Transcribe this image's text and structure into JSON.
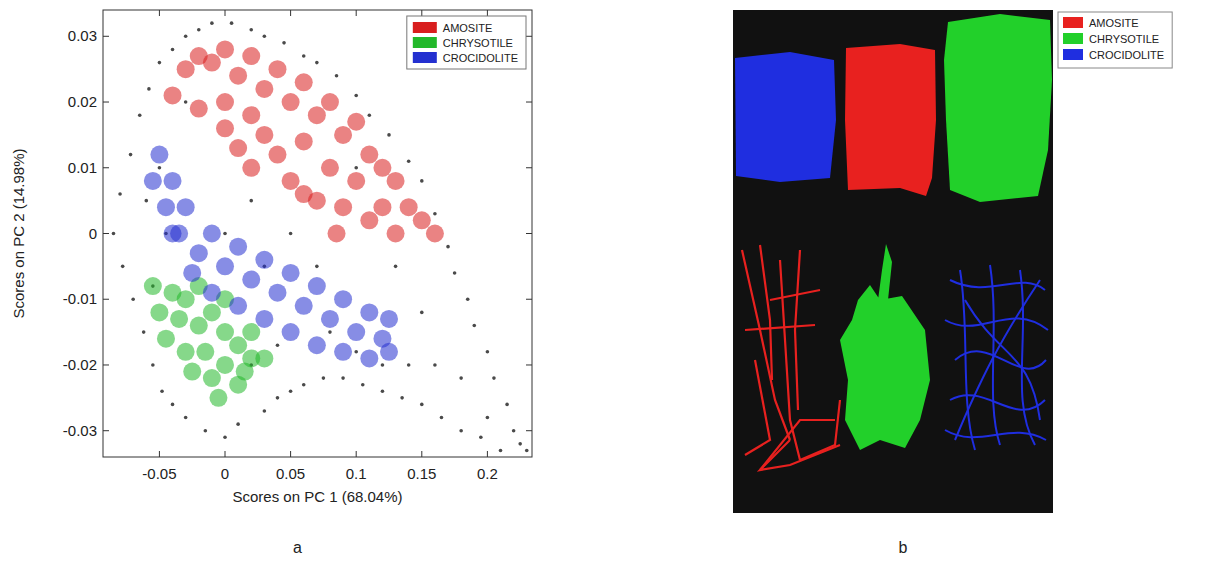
{
  "chart_data": {
    "type": "scatter",
    "x_label": "Scores on PC 1 (68.04%)",
    "y_label": "Scores on PC 2 (14.98%)",
    "xlim": [
      -0.093,
      0.234
    ],
    "ylim": [
      -0.034,
      0.034
    ],
    "xticks": [
      -0.05,
      0,
      0.05,
      0.1,
      0.15,
      0.2
    ],
    "yticks": [
      -0.03,
      -0.02,
      -0.01,
      0,
      0.01,
      0.02,
      0.03
    ],
    "legend": "northeast",
    "series": [
      {
        "color": "#4a4a4a",
        "marker": "dot",
        "x": [
          -0.085,
          -0.08,
          -0.078,
          -0.072,
          -0.07,
          -0.065,
          -0.062,
          -0.058,
          -0.055,
          -0.05,
          -0.048,
          -0.04,
          -0.04,
          -0.03,
          -0.03,
          -0.02,
          -0.015,
          -0.01,
          0.0,
          0.005,
          0.01,
          0.02,
          0.03,
          0.03,
          0.04,
          0.045,
          0.05,
          0.06,
          0.06,
          0.07,
          0.075,
          0.085,
          0.09,
          0.1,
          0.105,
          0.11,
          0.12,
          0.125,
          0.135,
          0.14,
          0.15,
          0.15,
          0.16,
          0.165,
          0.17,
          0.175,
          0.18,
          0.185,
          0.19,
          0.195,
          0.2,
          0.205,
          0.21,
          0.215,
          0.22,
          0.225,
          0.23,
          -0.06,
          -0.05,
          -0.055,
          -0.045,
          0.0,
          0.02,
          0.03,
          0.05,
          0.07,
          0.08,
          0.1,
          0.12,
          0.14,
          0.16,
          0.04,
          0.02,
          -0.03,
          0.1,
          0.13,
          0.15,
          0.18,
          0.2
        ],
        "values": [
          0.0,
          0.006,
          -0.005,
          0.012,
          -0.01,
          0.018,
          -0.015,
          0.022,
          -0.02,
          0.026,
          -0.024,
          0.028,
          -0.026,
          0.03,
          -0.028,
          0.031,
          -0.03,
          0.032,
          -0.031,
          0.032,
          -0.029,
          0.031,
          -0.027,
          0.03,
          -0.025,
          0.029,
          -0.024,
          0.027,
          -0.023,
          0.026,
          -0.022,
          0.024,
          -0.022,
          0.021,
          -0.023,
          0.018,
          -0.024,
          0.015,
          -0.025,
          0.011,
          -0.026,
          0.008,
          0.003,
          -0.028,
          -0.002,
          -0.006,
          -0.03,
          -0.01,
          -0.014,
          -0.031,
          -0.018,
          -0.022,
          -0.033,
          -0.026,
          -0.03,
          -0.032,
          -0.033,
          0.005,
          0.01,
          -0.008,
          0.0,
          0.0,
          0.005,
          -0.005,
          0.0,
          -0.005,
          -0.015,
          -0.018,
          -0.02,
          -0.02,
          -0.02,
          -0.017,
          -0.02,
          0.02,
          0.01,
          -0.005,
          -0.012,
          -0.022,
          -0.028
        ]
      },
      {
        "name": "AMOSITE",
        "color": "#d81e1e",
        "marker": "blob",
        "x": [
          -0.04,
          -0.03,
          -0.02,
          -0.01,
          0.0,
          0.0,
          0.0,
          0.01,
          0.01,
          0.02,
          0.02,
          0.02,
          0.03,
          0.04,
          0.04,
          0.05,
          0.05,
          0.06,
          0.06,
          0.07,
          0.07,
          0.08,
          0.08,
          0.09,
          0.09,
          0.1,
          0.1,
          0.11,
          0.11,
          0.12,
          0.12,
          0.13,
          0.13,
          0.14,
          0.15,
          0.16,
          -0.02,
          0.03,
          0.06,
          0.085
        ],
        "values": [
          0.021,
          0.025,
          0.027,
          0.026,
          0.028,
          0.016,
          0.02,
          0.024,
          0.013,
          0.027,
          0.018,
          0.01,
          0.022,
          0.025,
          0.012,
          0.02,
          0.008,
          0.023,
          0.014,
          0.005,
          0.018,
          0.02,
          0.01,
          0.015,
          0.004,
          0.017,
          0.008,
          0.012,
          0.002,
          0.01,
          0.004,
          0.008,
          0.0,
          0.004,
          0.002,
          0.0,
          0.019,
          0.015,
          0.006,
          0.0
        ]
      },
      {
        "name": "CHRYSOTILE",
        "color": "#22b82a",
        "marker": "blob",
        "x": [
          -0.055,
          -0.05,
          -0.045,
          -0.04,
          -0.035,
          -0.03,
          -0.03,
          -0.025,
          -0.02,
          -0.02,
          -0.015,
          -0.01,
          -0.01,
          0.0,
          0.0,
          0.0,
          0.01,
          0.01,
          0.02,
          0.02,
          0.03,
          -0.005,
          0.015
        ],
        "values": [
          -0.008,
          -0.012,
          -0.016,
          -0.009,
          -0.013,
          -0.018,
          -0.01,
          -0.021,
          -0.014,
          -0.008,
          -0.018,
          -0.012,
          -0.022,
          -0.015,
          -0.02,
          -0.01,
          -0.017,
          -0.023,
          -0.019,
          -0.015,
          -0.019,
          -0.025,
          -0.021
        ]
      },
      {
        "name": "CROCIDOLITE",
        "color": "#2430d0",
        "marker": "blob",
        "x": [
          -0.055,
          -0.045,
          -0.035,
          -0.02,
          0.0,
          0.02,
          0.04,
          0.06,
          0.08,
          0.1,
          0.12,
          -0.05,
          -0.04,
          -0.03,
          -0.01,
          0.01,
          0.03,
          0.05,
          0.07,
          0.09,
          0.11,
          0.125,
          -0.04,
          -0.025,
          -0.01,
          0.01,
          0.03,
          0.05,
          0.07,
          0.09,
          0.11,
          0.125
        ],
        "values": [
          0.008,
          0.004,
          0.0,
          -0.003,
          -0.005,
          -0.007,
          -0.009,
          -0.011,
          -0.013,
          -0.015,
          -0.016,
          0.012,
          0.008,
          0.004,
          0.0,
          -0.002,
          -0.004,
          -0.006,
          -0.008,
          -0.01,
          -0.012,
          -0.013,
          0.0,
          -0.006,
          -0.009,
          -0.011,
          -0.013,
          -0.015,
          -0.017,
          -0.018,
          -0.019,
          -0.018
        ]
      }
    ]
  },
  "classification_map": {
    "legend": [
      {
        "name": "AMOSITE",
        "color": "#e8211f"
      },
      {
        "name": "CHRYSOTILE",
        "color": "#22d02a"
      },
      {
        "name": "CROCIDOLITE",
        "color": "#1f2ee0"
      }
    ]
  },
  "panel_labels": [
    "a",
    "b"
  ]
}
